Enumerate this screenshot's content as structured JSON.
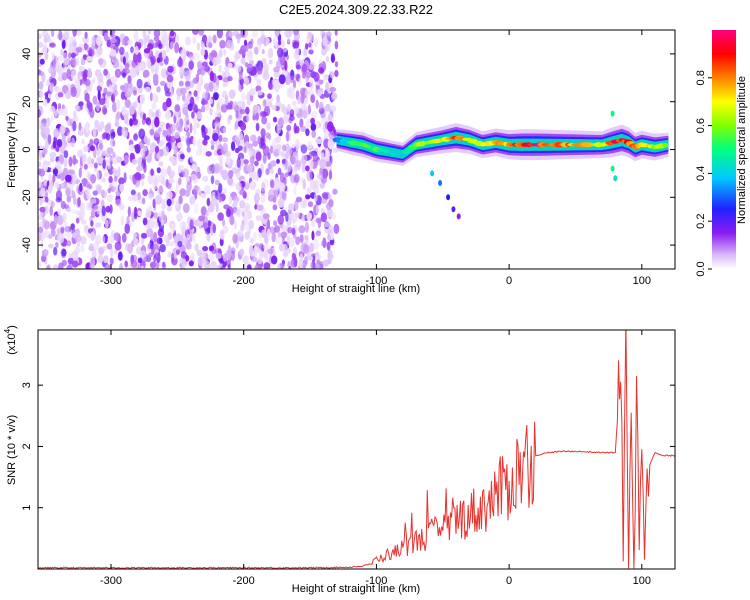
{
  "title": "C2E5.2024.309.22.33.R22",
  "colors": {
    "snr_line": "#e8322e",
    "spectrogram_noise": "#7a2de0",
    "spectrogram_bg": "#ffffff",
    "frame": "#000000"
  },
  "chart_data": [
    {
      "type": "heatmap",
      "panel": "spectrogram",
      "xlabel": "Height of straight line (km)",
      "ylabel": "Frequency (Hz)",
      "xlim": [
        -355,
        125
      ],
      "ylim": [
        -50,
        50
      ],
      "xticks": [
        -300,
        -200,
        -100,
        0,
        100
      ],
      "yticks": [
        -40,
        -20,
        0,
        20,
        40
      ],
      "colorbar": {
        "label": "Normalized spectral amplitude",
        "range": [
          0,
          1
        ],
        "ticks": [
          0.0,
          0.2,
          0.4,
          0.6,
          0.8
        ],
        "colormap": [
          "#ffffff",
          "#d8b8f8",
          "#8c1cf0",
          "#2020ff",
          "#00c8ff",
          "#00ff80",
          "#80ff00",
          "#ffff00",
          "#ff8000",
          "#ff0000",
          "#ff0080"
        ]
      },
      "regions": {
        "noise_band": {
          "x_from": -355,
          "x_to": -130,
          "amplitude": "broadband low-to-moderate"
        },
        "signal_band": {
          "x_from": -130,
          "x_to": 125,
          "center_freq": 2,
          "ridge": [
            {
              "x": -130,
              "freq": 4,
              "amp": 0.35
            },
            {
              "x": -120,
              "freq": 3,
              "amp": 0.5
            },
            {
              "x": -110,
              "freq": 2,
              "amp": 0.6
            },
            {
              "x": -100,
              "freq": 0,
              "amp": 0.55
            },
            {
              "x": -90,
              "freq": -1,
              "amp": 0.5
            },
            {
              "x": -80,
              "freq": -2,
              "amp": 0.45
            },
            {
              "x": -70,
              "freq": 2,
              "amp": 0.6
            },
            {
              "x": -60,
              "freq": 3,
              "amp": 0.65
            },
            {
              "x": -50,
              "freq": 4,
              "amp": 0.7
            },
            {
              "x": -40,
              "freq": 5,
              "amp": 0.85
            },
            {
              "x": -30,
              "freq": 4,
              "amp": 0.75
            },
            {
              "x": -20,
              "freq": 2,
              "amp": 0.7
            },
            {
              "x": -10,
              "freq": 3,
              "amp": 0.75
            },
            {
              "x": 0,
              "freq": 2,
              "amp": 0.85
            },
            {
              "x": 10,
              "freq": 2,
              "amp": 0.95
            },
            {
              "x": 20,
              "freq": 2,
              "amp": 0.95
            },
            {
              "x": 30,
              "freq": 2,
              "amp": 0.9
            },
            {
              "x": 40,
              "freq": 2,
              "amp": 0.85
            },
            {
              "x": 50,
              "freq": 2,
              "amp": 0.8
            },
            {
              "x": 60,
              "freq": 2,
              "amp": 0.75
            },
            {
              "x": 70,
              "freq": 2,
              "amp": 0.7
            },
            {
              "x": 78,
              "freq": 3,
              "amp": 0.9
            },
            {
              "x": 85,
              "freq": 4,
              "amp": 0.95
            },
            {
              "x": 90,
              "freq": 3,
              "amp": 0.9
            },
            {
              "x": 95,
              "freq": 1,
              "amp": 0.8
            },
            {
              "x": 100,
              "freq": 2,
              "amp": 0.75
            },
            {
              "x": 110,
              "freq": 1,
              "amp": 0.7
            },
            {
              "x": 120,
              "freq": 2,
              "amp": 0.55
            }
          ]
        },
        "tail_points": [
          {
            "x": -58,
            "freq": -10,
            "amp": 0.4
          },
          {
            "x": -52,
            "freq": -14,
            "amp": 0.35
          },
          {
            "x": -46,
            "freq": -20,
            "amp": 0.3
          },
          {
            "x": -42,
            "freq": -25,
            "amp": 0.25
          },
          {
            "x": -38,
            "freq": -28,
            "amp": 0.2
          },
          {
            "x": 78,
            "freq": 15,
            "amp": 0.5
          },
          {
            "x": 78,
            "freq": -8,
            "amp": 0.5
          },
          {
            "x": 80,
            "freq": -12,
            "amp": 0.45
          }
        ]
      }
    },
    {
      "type": "line",
      "panel": "snr",
      "xlabel": "Height of straight line (km)",
      "ylabel": "SNR (10 * v/v)",
      "multiplier": "(x10",
      "multiplier_exp": "4",
      "multiplier_close": ")",
      "xlim": [
        -355,
        125
      ],
      "ylim": [
        0,
        3.9
      ],
      "xticks": [
        -300,
        -200,
        -100,
        0,
        100
      ],
      "yticks": [
        1,
        2,
        3
      ],
      "series": [
        {
          "x": [
            -355,
            -300,
            -250,
            -200,
            -150,
            -120,
            -110,
            -105,
            -100,
            -95,
            -90,
            -85,
            -80,
            -75,
            -70,
            -65,
            -60,
            -55,
            -50,
            -45,
            -40,
            -35,
            -30,
            -25,
            -20,
            -15,
            -10,
            -5,
            0,
            5,
            10,
            15,
            20,
            25,
            30,
            40,
            50,
            60,
            70,
            80,
            84,
            86,
            88,
            90,
            92,
            94,
            96,
            98,
            100,
            102,
            104,
            106,
            110,
            115,
            120,
            125
          ],
          "y": [
            0.02,
            0.02,
            0.02,
            0.02,
            0.02,
            0.03,
            0.05,
            0.08,
            0.15,
            0.2,
            0.25,
            0.28,
            0.35,
            0.4,
            0.45,
            0.5,
            0.55,
            0.6,
            0.65,
            0.7,
            0.8,
            0.85,
            0.9,
            0.95,
            1.0,
            1.1,
            1.2,
            1.3,
            1.4,
            1.55,
            1.7,
            1.8,
            1.85,
            1.88,
            1.9,
            1.92,
            1.92,
            1.91,
            1.9,
            1.9,
            3.2,
            0.2,
            3.6,
            0.5,
            3.0,
            0.1,
            2.8,
            0.4,
            2.6,
            0.6,
            2.1,
            1.7,
            1.9,
            1.85,
            1.85,
            1.85
          ]
        }
      ]
    }
  ]
}
